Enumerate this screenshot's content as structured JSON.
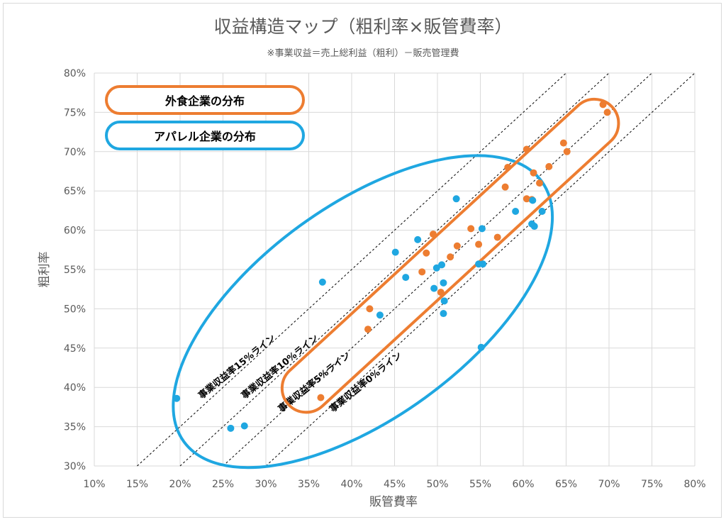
{
  "chart_data": {
    "type": "scatter",
    "title": "収益構造マップ（粗利率×販管費率）",
    "subtitle": "※事業収益＝売上総利益（粗利）－販売管理費",
    "xlabel": "販管費率",
    "ylabel": "粗利率",
    "xlim": [
      10,
      80
    ],
    "ylim": [
      30,
      80
    ],
    "x_ticks": [
      "10%",
      "15%",
      "20%",
      "25%",
      "30%",
      "35%",
      "40%",
      "45%",
      "50%",
      "55%",
      "60%",
      "65%",
      "70%",
      "75%",
      "80%"
    ],
    "y_ticks": [
      "30%",
      "35%",
      "40%",
      "45%",
      "50%",
      "55%",
      "60%",
      "65%",
      "70%",
      "75%",
      "80%"
    ],
    "grid": true,
    "series": [
      {
        "name": "外食企業の分布",
        "color": "#ED7D31",
        "points": [
          [
            69.3,
            76.0
          ],
          [
            69.8,
            75.0
          ],
          [
            64.7,
            71.1
          ],
          [
            65.1,
            70.0
          ],
          [
            60.4,
            70.3
          ],
          [
            58.2,
            68.0
          ],
          [
            63.0,
            68.1
          ],
          [
            61.2,
            67.3
          ],
          [
            57.9,
            65.5
          ],
          [
            61.9,
            66.0
          ],
          [
            60.4,
            64.0
          ],
          [
            61.0,
            63.9
          ],
          [
            53.9,
            60.2
          ],
          [
            57.0,
            59.1
          ],
          [
            49.5,
            59.5
          ],
          [
            54.8,
            58.2
          ],
          [
            52.3,
            58.0
          ],
          [
            48.7,
            57.1
          ],
          [
            51.5,
            56.6
          ],
          [
            48.2,
            54.7
          ],
          [
            50.4,
            52.1
          ],
          [
            42.1,
            50.0
          ],
          [
            41.9,
            47.4
          ],
          [
            36.4,
            38.7
          ]
        ]
      },
      {
        "name": "アパレル企業の分布",
        "color": "#1FA7E1",
        "points": [
          [
            52.2,
            64.0
          ],
          [
            61.1,
            63.8
          ],
          [
            62.2,
            62.4
          ],
          [
            59.1,
            62.4
          ],
          [
            55.2,
            60.2
          ],
          [
            61.0,
            60.8
          ],
          [
            61.3,
            60.5
          ],
          [
            47.7,
            58.8
          ],
          [
            45.1,
            57.2
          ],
          [
            54.8,
            55.7
          ],
          [
            55.3,
            55.7
          ],
          [
            50.5,
            55.6
          ],
          [
            49.9,
            55.2
          ],
          [
            46.3,
            54.0
          ],
          [
            36.6,
            53.4
          ],
          [
            50.7,
            53.3
          ],
          [
            49.6,
            52.6
          ],
          [
            50.8,
            51.0
          ],
          [
            43.3,
            49.2
          ],
          [
            50.7,
            49.4
          ],
          [
            55.1,
            45.1
          ],
          [
            19.6,
            38.6
          ],
          [
            27.5,
            35.1
          ],
          [
            25.9,
            34.8
          ]
        ]
      }
    ],
    "reference_lines": [
      {
        "label": "事業収益率15%ライン",
        "offset": 15
      },
      {
        "label": "事業収益率10%ライン",
        "offset": 10
      },
      {
        "label": "事業収益率5%ライン",
        "offset": 5
      },
      {
        "label": "事業収益率0%ライン",
        "offset": 0
      }
    ],
    "legend": [
      {
        "label": "外食企業の分布",
        "color": "#ED7D31"
      },
      {
        "label": "アパレル企業の分布",
        "color": "#1FA7E1"
      }
    ]
  }
}
